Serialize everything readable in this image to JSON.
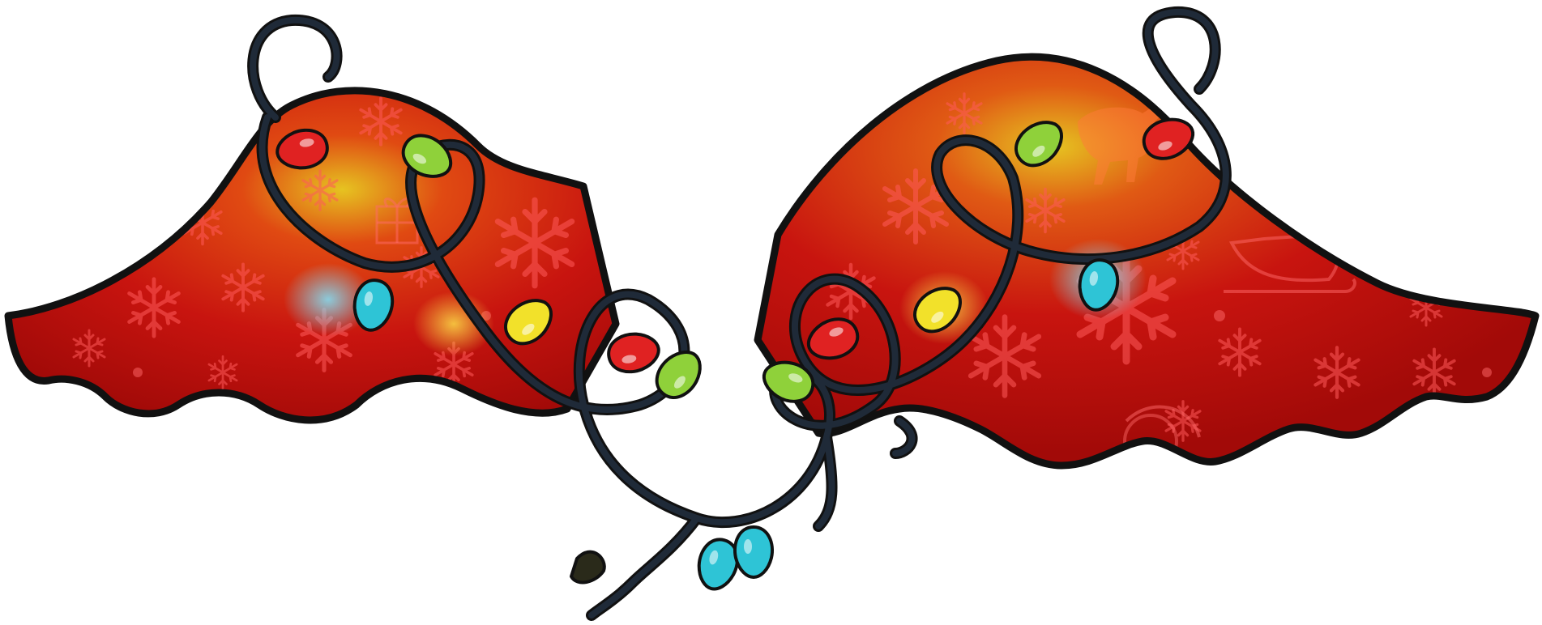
{
  "colors": {
    "background": "#ffffff",
    "wing_red": "#c8140f",
    "wing_red_dark": "#8e0606",
    "wing_glow_orange": "#ff6a1a",
    "wing_glow_yellow": "#e6c321",
    "outline": "#111111",
    "cord": "#1f2a38",
    "pattern": "#ff5050",
    "bulb_red": "#e02222",
    "bulb_green": "#8fd13a",
    "bulb_cyan": "#2ec4d6",
    "bulb_yellow": "#f2e12a",
    "bulb_socket": "#1f2a38"
  },
  "illustration": {
    "subject": "pair-of-christmas-wings",
    "decoration": [
      "snowflake-pattern",
      "reindeer-silhouette",
      "sleigh-silhouette",
      "gift-silhouette"
    ],
    "bulb_colors": [
      "bulb_red",
      "bulb_green",
      "bulb_cyan",
      "bulb_yellow"
    ]
  }
}
